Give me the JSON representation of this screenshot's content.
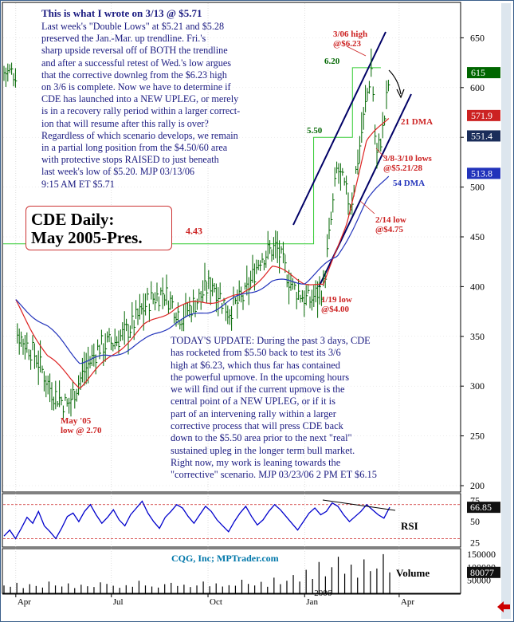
{
  "header_note": {
    "heading": "This is what I wrote on 3/13 @ $5.71",
    "body": "Last week's \"Double Lows\" at $5.21 and $5.28\npreserved the Jan.-Mar. up trendline. Fri.'s\nsharp upside reversal off of BOTH the trendline\nand after a successful retest of Wed.'s low argues\nthat the corrective downleg from the $6.23 high\non 3/6 is complete. Now we have to determine if\nCDE has launched into a NEW UPLEG, or merely\nis in a recovery rally period within a larger correct-\nion that will resume after this rally is over?\nRegardless of which scenario develops, we remain\nin a partial long position from the $4.50/60 area\nwith protective stops RAISED to just beneath\nlast week's low of $5.20. MJP  03/13/06\n9:15 AM ET $5.71"
  },
  "chart_title": {
    "line1": "CDE Daily:",
    "line2": "May 2005-Pres."
  },
  "update_note": "TODAY'S UPDATE:  During the past 3 days, CDE\nhas rocketed from $5.50 back to test its 3/6\nhigh at $6.23, which thus far has contained\nthe powerful upmove. In the upcoming hours\nwe will find out if the current upmove is the\ncentral point of a NEW UPLEG, or if it is\npart of an intervening rally within a larger\ncorrective process that will press CDE back\ndown to the $5.50 area prior to the next \"real\"\nsustained upleg in the longer term bull market.\nRight now, my work is leaning towards the\n\"corrective\" scenario. MJP  03/23/06  2 PM ET $6.15",
  "credit": "CQG, Inc; MPTrader.com",
  "colors": {
    "price": "#006600",
    "dma21": "#dd2222",
    "dma54": "#2233bb",
    "levels": "#33cc33",
    "trend": "#000066",
    "annot": "#cc2222",
    "rsi": "#0000cc",
    "volume": "#000000",
    "frame": "#3a5f8a"
  },
  "chart_data": [
    {
      "type": "line",
      "panel": "price",
      "y_axis": {
        "ticks": [
          "650",
          "600",
          "550",
          "500",
          "450",
          "400",
          "350",
          "300",
          "250",
          "200"
        ],
        "range": [
          200,
          670
        ],
        "scale_note": "price in cents"
      },
      "x_axis": {
        "ticks": [
          "Apr",
          "Jul",
          "Oct",
          "Jan",
          "Apr"
        ],
        "year_label": "2006"
      },
      "last_value_badges": [
        {
          "text": "615",
          "value": 615,
          "series": "price"
        },
        {
          "text": "571.9",
          "value": 571.9,
          "series": "21 DMA"
        },
        {
          "text": "551.4",
          "value": 551.4,
          "series": "upper trend channel"
        },
        {
          "text": "513.8",
          "value": 513.8,
          "series": "54 DMA"
        }
      ],
      "series": [
        {
          "name": "price",
          "x": [
            "2005-04-01",
            "2005-04-20",
            "2005-05-05",
            "2005-05-20",
            "2005-06-05",
            "2005-06-20",
            "2005-07-05",
            "2005-07-20",
            "2005-08-05",
            "2005-08-20",
            "2005-09-05",
            "2005-09-20",
            "2005-10-05",
            "2005-10-20",
            "2005-11-05",
            "2005-11-20",
            "2005-12-05",
            "2005-12-20",
            "2006-01-05",
            "2006-01-19",
            "2006-02-01",
            "2006-02-14",
            "2006-03-01",
            "2006-03-06",
            "2006-03-10",
            "2006-03-17",
            "2006-03-23"
          ],
          "values": [
            355,
            330,
            295,
            280,
            315,
            340,
            345,
            360,
            385,
            395,
            370,
            385,
            405,
            375,
            390,
            430,
            440,
            400,
            385,
            400,
            520,
            480,
            590,
            623,
            528,
            560,
            615
          ]
        },
        {
          "name": "21 DMA",
          "x": [
            "2005-04-01",
            "2005-05-01",
            "2005-06-01",
            "2005-07-01",
            "2005-08-01",
            "2005-09-01",
            "2005-10-01",
            "2005-11-01",
            "2005-12-01",
            "2006-01-01",
            "2006-01-19",
            "2006-02-10",
            "2006-03-01",
            "2006-03-23"
          ],
          "values": [
            385,
            330,
            300,
            330,
            360,
            380,
            385,
            390,
            420,
            405,
            400,
            465,
            545,
            571.9
          ]
        },
        {
          "name": "54 DMA",
          "x": [
            "2005-04-01",
            "2005-05-01",
            "2005-06-01",
            "2005-07-01",
            "2005-08-01",
            "2005-09-01",
            "2005-10-01",
            "2005-11-01",
            "2005-12-01",
            "2006-01-01",
            "2006-02-01",
            "2006-03-01",
            "2006-03-23"
          ],
          "values": [
            385,
            360,
            325,
            330,
            345,
            365,
            375,
            390,
            405,
            405,
            430,
            485,
            513.8
          ]
        }
      ],
      "horizontal_levels": [
        {
          "label": "4.43",
          "value": 443
        },
        {
          "label": "5.50",
          "value": 550
        },
        {
          "label": "6.20",
          "value": 620
        }
      ],
      "annotations": [
        {
          "text": "3/06 high @$6.23",
          "line1": "3/06 high",
          "line2": "@$6.23",
          "x": "2006-03-06",
          "y": 623
        },
        {
          "text": "21 DMA",
          "x": "2006-03-23",
          "y": 565
        },
        {
          "text": "3/8-3/10 lows @$5.21/28",
          "line1": "3/8-3/10 lows",
          "line2": "@$5.21/28",
          "x": "2006-03-10",
          "y": 521
        },
        {
          "text": "54 DMA",
          "x": "2006-03-23",
          "y": 505
        },
        {
          "text": "2/14 low @$4.75",
          "line1": "2/14 low",
          "line2": "@$4.75",
          "x": "2006-02-14",
          "y": 475
        },
        {
          "text": "1/19 low @$4.00",
          "line1": "1/19 low",
          "line2": "@$4.00",
          "x": "2006-01-19",
          "y": 400
        },
        {
          "text": "May '05 low @ 2.70",
          "line1": "May '05",
          "line2": "low @ 2.70",
          "x": "2005-05-20",
          "y": 270
        }
      ]
    },
    {
      "type": "line",
      "panel": "RSI",
      "label": "RSI",
      "y_axis": {
        "ticks": [
          "75",
          "50",
          "25"
        ],
        "range": [
          20,
          82
        ]
      },
      "last_value_badge": {
        "text": "66.85",
        "value": 66.85
      },
      "reference_levels": [
        70,
        30
      ],
      "values": [
        33,
        40,
        30,
        42,
        55,
        48,
        62,
        45,
        38,
        30,
        42,
        56,
        60,
        50,
        62,
        70,
        58,
        48,
        55,
        64,
        52,
        45,
        58,
        66,
        74,
        60,
        50,
        42,
        55,
        62,
        70,
        66,
        56,
        48,
        58,
        68,
        62,
        52,
        45,
        38,
        50,
        60,
        68,
        56,
        46,
        52,
        62,
        70,
        64,
        56,
        48,
        40,
        50,
        60,
        66,
        58,
        62,
        72,
        68,
        58,
        50,
        56,
        62,
        70,
        64,
        58,
        54,
        66.85
      ]
    },
    {
      "type": "bar",
      "panel": "volume",
      "label": "Volume",
      "y_axis": {
        "ticks": [
          "150000",
          "100000",
          "50000"
        ]
      },
      "last_value_badge": {
        "text": "80077",
        "value": 80077
      },
      "values": [
        30000,
        25000,
        40000,
        20000,
        35000,
        28000,
        22000,
        45000,
        30000,
        26000,
        38000,
        20000,
        33000,
        27000,
        24000,
        42000,
        36000,
        29000,
        21000,
        31000,
        25000,
        48000,
        30000,
        26000,
        22000,
        35000,
        40000,
        28000,
        33000,
        24000,
        30000,
        45000,
        27000,
        38000,
        26000,
        31000,
        29000,
        52000,
        36000,
        30000,
        44000,
        25000,
        60000,
        35000,
        48000,
        70000,
        45000,
        90000,
        55000,
        120000,
        65000,
        100000,
        140000,
        75000,
        110000,
        60000,
        130000,
        85000,
        95000,
        150000,
        80077
      ]
    }
  ]
}
